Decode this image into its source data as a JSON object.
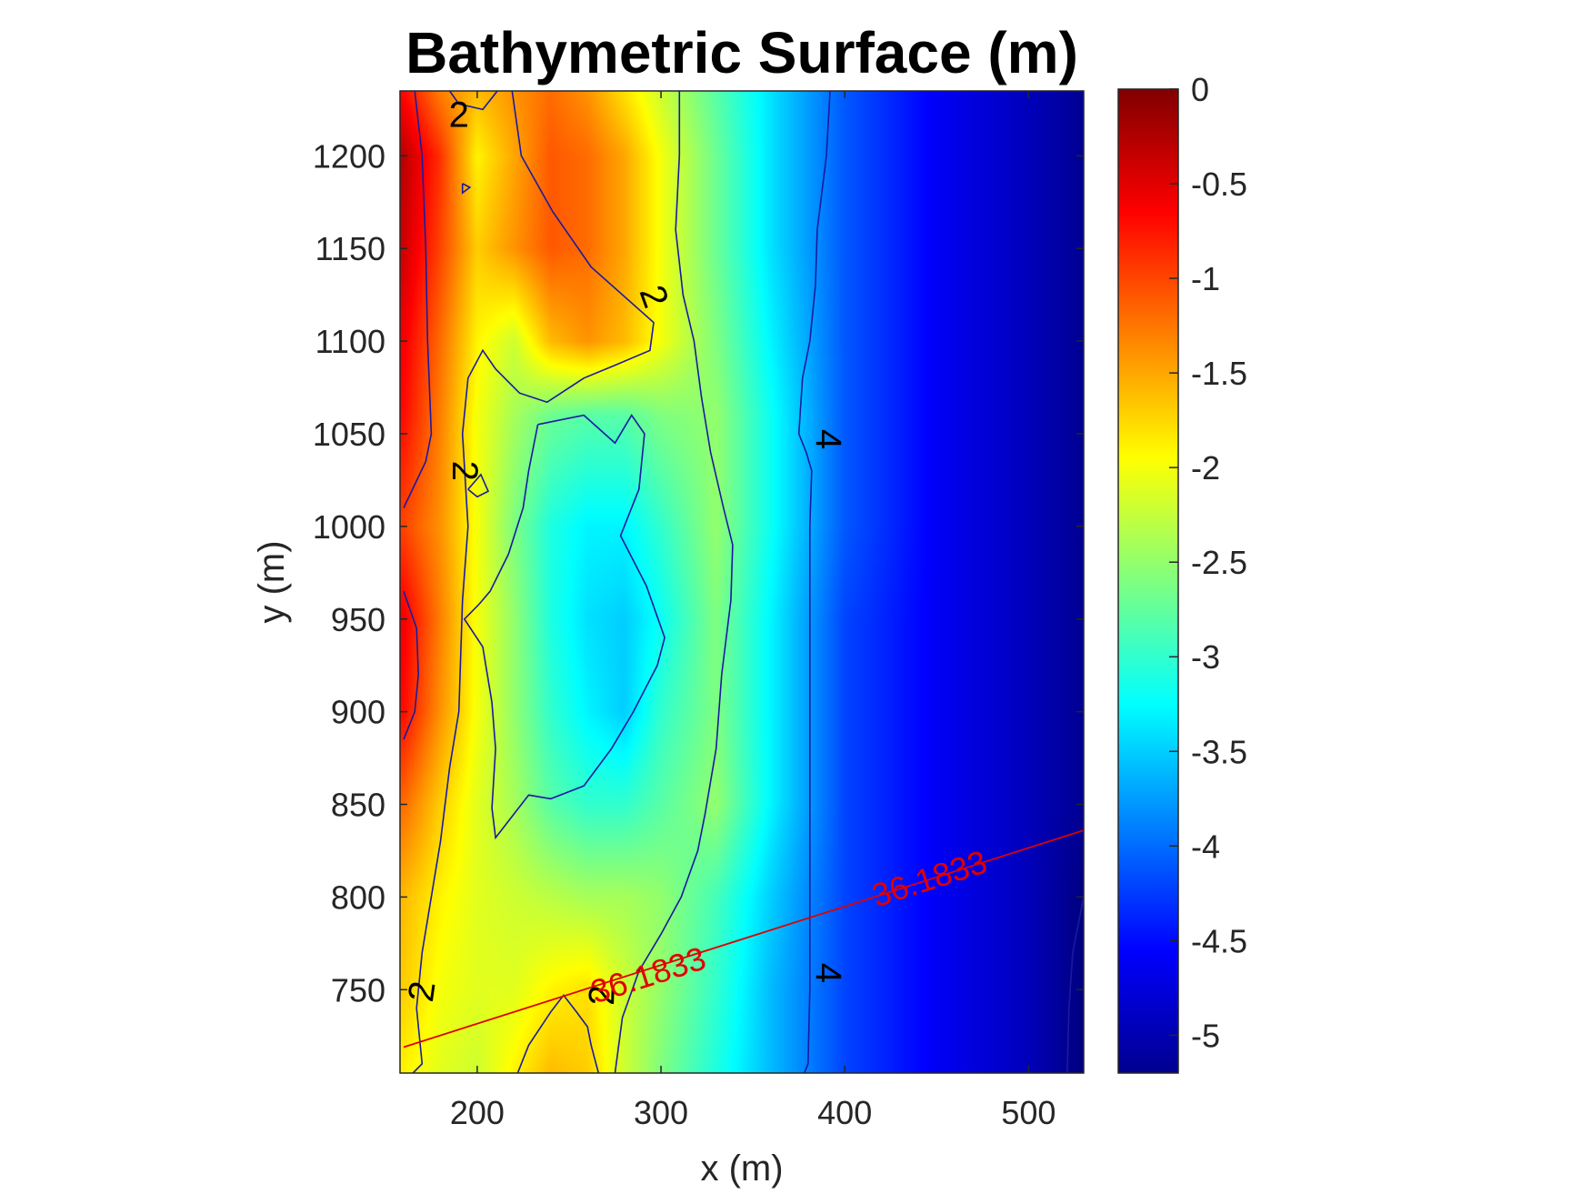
{
  "chart_data": {
    "type": "heatmap",
    "title": "Bathymetric Surface (m)",
    "xlabel": "x (m)",
    "ylabel": "y (m)",
    "xlim": [
      158,
      530
    ],
    "ylim": [
      705,
      1235
    ],
    "x_ticks": [
      200,
      300,
      400,
      500
    ],
    "y_ticks": [
      750,
      800,
      850,
      900,
      950,
      1000,
      1050,
      1100,
      1150,
      1200
    ],
    "colorbar": {
      "colormap": "jet",
      "range": [
        -5.2,
        0
      ],
      "ticks": [
        "0",
        "-0.5",
        "-1",
        "-1.5",
        "-2",
        "-2.5",
        "-3",
        "-3.5",
        "-4",
        "-4.5",
        "-5"
      ],
      "tick_values": [
        0,
        -0.5,
        -1,
        -1.5,
        -2,
        -2.5,
        -3,
        -3.5,
        -4,
        -4.5,
        -5
      ]
    },
    "surface": {
      "x": [
        160,
        180,
        200,
        220,
        240,
        260,
        280,
        300,
        330,
        360,
        400,
        450,
        500,
        530
      ],
      "y": [
        1235,
        1200,
        1150,
        1100,
        1060,
        1000,
        950,
        900,
        850,
        800,
        750,
        705
      ],
      "z": [
        [
          -0.7,
          -1.3,
          -1.6,
          -1.4,
          -1.2,
          -1.4,
          -1.8,
          -2.2,
          -2.8,
          -3.4,
          -4.1,
          -4.6,
          -4.9,
          -5.1
        ],
        [
          -0.3,
          -0.9,
          -1.9,
          -1.5,
          -1.1,
          -1.2,
          -1.5,
          -2.0,
          -2.7,
          -3.4,
          -4.1,
          -4.6,
          -4.9,
          -5.1
        ],
        [
          -0.4,
          -1.0,
          -1.7,
          -1.4,
          -1.1,
          -1.2,
          -1.5,
          -2.0,
          -2.7,
          -3.4,
          -4.1,
          -4.6,
          -4.9,
          -5.1
        ],
        [
          -0.6,
          -1.2,
          -1.9,
          -2.2,
          -1.6,
          -1.4,
          -1.6,
          -2.0,
          -2.6,
          -3.3,
          -4.1,
          -4.6,
          -4.9,
          -5.1
        ],
        [
          -0.7,
          -1.3,
          -2.0,
          -2.4,
          -2.7,
          -2.8,
          -2.8,
          -2.6,
          -2.5,
          -3.2,
          -4.1,
          -4.6,
          -4.9,
          -5.1
        ],
        [
          -1.0,
          -1.4,
          -2.0,
          -2.6,
          -3.1,
          -3.3,
          -3.3,
          -3.0,
          -2.5,
          -3.2,
          -4.1,
          -4.6,
          -4.9,
          -5.1
        ],
        [
          -0.6,
          -1.3,
          -2.0,
          -2.5,
          -3.1,
          -3.4,
          -3.5,
          -3.2,
          -2.6,
          -3.3,
          -4.2,
          -4.6,
          -4.9,
          -5.1
        ],
        [
          -0.7,
          -1.4,
          -2.0,
          -2.5,
          -3.0,
          -3.3,
          -3.5,
          -3.0,
          -2.6,
          -3.3,
          -4.2,
          -4.6,
          -4.9,
          -5.1
        ],
        [
          -1.2,
          -1.7,
          -2.1,
          -2.4,
          -2.8,
          -3.0,
          -3.0,
          -2.8,
          -2.5,
          -3.3,
          -4.2,
          -4.6,
          -4.9,
          -5.1
        ],
        [
          -1.6,
          -1.9,
          -2.1,
          -2.2,
          -2.3,
          -2.4,
          -2.4,
          -2.5,
          -2.9,
          -3.5,
          -4.2,
          -4.6,
          -4.9,
          -5.2
        ],
        [
          -1.7,
          -2.0,
          -2.1,
          -2.1,
          -1.9,
          -1.8,
          -2.2,
          -2.5,
          -3.0,
          -3.6,
          -4.2,
          -4.6,
          -4.9,
          -5.2
        ],
        [
          -1.9,
          -2.1,
          -2.2,
          -1.9,
          -1.6,
          -1.7,
          -2.2,
          -2.6,
          -3.1,
          -3.6,
          -4.2,
          -4.6,
          -4.9,
          -5.2
        ]
      ]
    },
    "contours": [
      {
        "level": "2",
        "points": [
          [
            185,
            1235
          ],
          [
            190,
            1228
          ],
          [
            203,
            1225
          ],
          [
            211,
            1235
          ]
        ]
      },
      {
        "level": "2",
        "points": [
          [
            192,
            1185
          ],
          [
            196,
            1183
          ],
          [
            192,
            1180
          ],
          [
            192,
            1185
          ]
        ]
      },
      {
        "level": "2",
        "points": [
          [
            219,
            1235
          ],
          [
            224,
            1200
          ],
          [
            241,
            1170
          ],
          [
            262,
            1140
          ],
          [
            296,
            1110
          ],
          [
            294,
            1095
          ],
          [
            275,
            1087
          ],
          [
            258,
            1080
          ],
          [
            238,
            1067
          ],
          [
            223,
            1072
          ],
          [
            210,
            1085
          ],
          [
            203,
            1095
          ],
          [
            195,
            1080
          ],
          [
            192,
            1050
          ],
          [
            195,
            1000
          ],
          [
            192,
            960
          ],
          [
            190,
            900
          ],
          [
            185,
            870
          ],
          [
            180,
            830
          ],
          [
            175,
            800
          ],
          [
            170,
            770
          ],
          [
            167,
            740
          ],
          [
            170,
            710
          ],
          [
            165,
            705
          ]
        ]
      },
      {
        "level": "2",
        "points": [
          [
            166,
            1235
          ],
          [
            170,
            1200
          ],
          [
            172,
            1150
          ],
          [
            173,
            1100
          ],
          [
            175,
            1050
          ],
          [
            172,
            1035
          ],
          [
            160,
            1010
          ]
        ]
      },
      {
        "level": "2",
        "points": [
          [
            160,
            965
          ],
          [
            167,
            945
          ],
          [
            168,
            920
          ],
          [
            166,
            900
          ],
          [
            160,
            885
          ]
        ]
      },
      {
        "level": "2",
        "points": [
          [
            222,
            705
          ],
          [
            228,
            720
          ],
          [
            240,
            738
          ],
          [
            247,
            747
          ],
          [
            254,
            738
          ],
          [
            260,
            730
          ],
          [
            262,
            720
          ],
          [
            266,
            705
          ]
        ]
      },
      {
        "level": "3",
        "points": [
          [
            195,
            1020
          ],
          [
            200,
            1016
          ],
          [
            206,
            1019
          ],
          [
            202,
            1028
          ],
          [
            195,
            1020
          ]
        ]
      },
      {
        "level": "3",
        "points": [
          [
            233,
            1055
          ],
          [
            258,
            1060
          ],
          [
            275,
            1045
          ],
          [
            284,
            1060
          ],
          [
            291,
            1050
          ],
          [
            288,
            1020
          ],
          [
            278,
            995
          ],
          [
            292,
            968
          ],
          [
            302,
            940
          ],
          [
            298,
            925
          ],
          [
            285,
            900
          ],
          [
            273,
            880
          ],
          [
            258,
            860
          ],
          [
            240,
            853
          ],
          [
            228,
            855
          ],
          [
            210,
            832
          ],
          [
            208,
            848
          ],
          [
            210,
            880
          ],
          [
            208,
            905
          ],
          [
            203,
            935
          ],
          [
            193,
            950
          ],
          [
            201,
            958
          ],
          [
            207,
            965
          ],
          [
            217,
            985
          ],
          [
            225,
            1010
          ],
          [
            228,
            1030
          ],
          [
            233,
            1055
          ]
        ]
      },
      {
        "level": "3",
        "points": [
          [
            310,
            1235
          ],
          [
            310,
            1200
          ],
          [
            308,
            1160
          ],
          [
            312,
            1125
          ],
          [
            318,
            1100
          ],
          [
            322,
            1070
          ],
          [
            327,
            1040
          ],
          [
            334,
            1010
          ],
          [
            339,
            990
          ],
          [
            338,
            960
          ],
          [
            333,
            920
          ],
          [
            330,
            880
          ],
          [
            324,
            845
          ],
          [
            320,
            825
          ],
          [
            311,
            800
          ],
          [
            300,
            780
          ],
          [
            288,
            760
          ],
          [
            279,
            735
          ],
          [
            275,
            705
          ]
        ]
      },
      {
        "level": "4",
        "points": [
          [
            392,
            1235
          ],
          [
            390,
            1200
          ],
          [
            385,
            1160
          ],
          [
            384,
            1130
          ],
          [
            381,
            1100
          ],
          [
            377,
            1080
          ],
          [
            375,
            1050
          ],
          [
            379,
            1040
          ],
          [
            382,
            1030
          ],
          [
            381,
            1000
          ],
          [
            381,
            960
          ],
          [
            381,
            900
          ],
          [
            381,
            850
          ],
          [
            381,
            800
          ],
          [
            381,
            750
          ],
          [
            380,
            710
          ],
          [
            378,
            705
          ]
        ]
      },
      {
        "level": "5",
        "points": [
          [
            521,
            705
          ],
          [
            522,
            740
          ],
          [
            524,
            770
          ],
          [
            530,
            800
          ]
        ]
      }
    ],
    "contour_labels": [
      {
        "text": "2",
        "x": 190,
        "y": 1222,
        "angle": 0
      },
      {
        "text": "2",
        "x": 296,
        "y": 1124,
        "angle": 70
      },
      {
        "text": "2",
        "x": 193,
        "y": 1030,
        "angle": 90
      },
      {
        "text": "2",
        "x": 170,
        "y": 749,
        "angle": -82
      },
      {
        "text": "2",
        "x": 268,
        "y": 747,
        "angle": -88
      },
      {
        "text": "4",
        "x": 391,
        "y": 1047,
        "angle": 90
      },
      {
        "text": "4",
        "x": 391,
        "y": 759,
        "angle": 90
      }
    ],
    "transect": {
      "label": "36.1833",
      "start": [
        160,
        719
      ],
      "end": [
        530,
        836
      ],
      "labels": [
        {
          "text": "36.1833",
          "x": 446,
          "y": 810
        },
        {
          "text": "36.1833",
          "x": 293,
          "y": 758
        }
      ]
    }
  }
}
